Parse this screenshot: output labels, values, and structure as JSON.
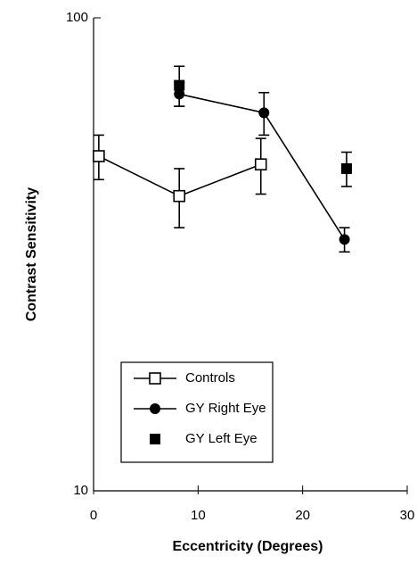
{
  "chart_data": {
    "type": "scatter",
    "xlabel": "Eccentricity (Degrees)",
    "ylabel": "Contrast Sensitivity",
    "xlim": [
      0,
      30
    ],
    "xticks": [
      0,
      10,
      20,
      30
    ],
    "ylim": [
      10,
      100
    ],
    "yticks": [
      10,
      100
    ],
    "ylog": true,
    "legend": "lower left",
    "series": [
      {
        "name": "Controls",
        "color": "#000000",
        "marker": "open-square",
        "line": true,
        "x": [
          0.5,
          8.2,
          16
        ],
        "values": [
          51,
          42,
          49
        ],
        "errors": [
          5.5,
          6,
          6.6
        ]
      },
      {
        "name": "GY Right Eye",
        "color": "#000000",
        "marker": "circle",
        "line": true,
        "x": [
          8.2,
          16.3,
          24
        ],
        "values": [
          69,
          63,
          34
        ],
        "errors": [
          4,
          6.5,
          2
        ]
      },
      {
        "name": "GY Left Eye",
        "color": "#000000",
        "marker": "square",
        "line": false,
        "x": [
          8.2,
          24.2
        ],
        "values": [
          72,
          48
        ],
        "errors": [
          7,
          4
        ]
      }
    ]
  }
}
